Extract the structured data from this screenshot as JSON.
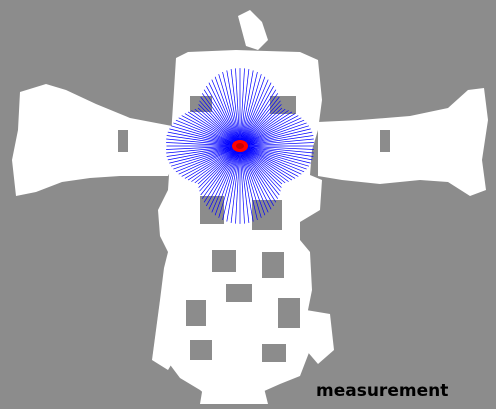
{
  "viewer": {
    "caption": "measurement"
  },
  "map": {
    "free_space_color": "#ffffff",
    "unknown_color": "#8c8c8c",
    "beam_color": "#0000ff",
    "robot_color": "#ff0000"
  },
  "icons": {
    "robot": "robot-pose-marker",
    "beams": "laser-scan-beams"
  }
}
